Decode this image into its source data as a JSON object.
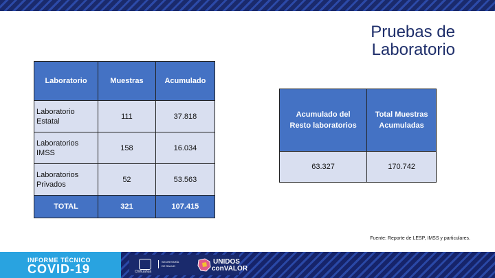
{
  "title": {
    "line1": "Pruebas de",
    "line2": "Laboratorio"
  },
  "table_main": {
    "headers": [
      "Laboratorio",
      "Muestras",
      "Acumulado"
    ],
    "rows": [
      {
        "lab_line1": "Laboratorio",
        "lab_line2": "Estatal",
        "muestras": "111",
        "acumulado": "37.818"
      },
      {
        "lab_line1": "Laboratorios",
        "lab_line2": "IMSS",
        "muestras": "158",
        "acumulado": "16.034"
      },
      {
        "lab_line1": "Laboratorios",
        "lab_line2": "Privados",
        "muestras": "52",
        "acumulado": "53.563"
      }
    ],
    "total": {
      "label": "TOTAL",
      "muestras": "321",
      "acumulado": "107.415"
    }
  },
  "table_summary": {
    "header1_line1": "Acumulado del",
    "header1_line2": "Resto laboratorios",
    "header2_line1": "Total Muestras",
    "header2_line2": "Acumuladas",
    "value1": "63.327",
    "value2": "170.742"
  },
  "source": "Fuente: Reporte de LESP, IMSS y particulares.",
  "footer": {
    "line1": "INFORME TÉCNICO",
    "line2": "COVID-19",
    "gov_label": "Chihuahua",
    "sec_label": "SECRETARÍA DE SALUD",
    "brand1": "UNIDOS",
    "brand2": "conVALOR"
  },
  "colors": {
    "header_blue": "#4472c4",
    "cell_fill": "#d9dff0",
    "title_navy": "#1f2f6b",
    "footer_cyan": "#29a3e0"
  }
}
